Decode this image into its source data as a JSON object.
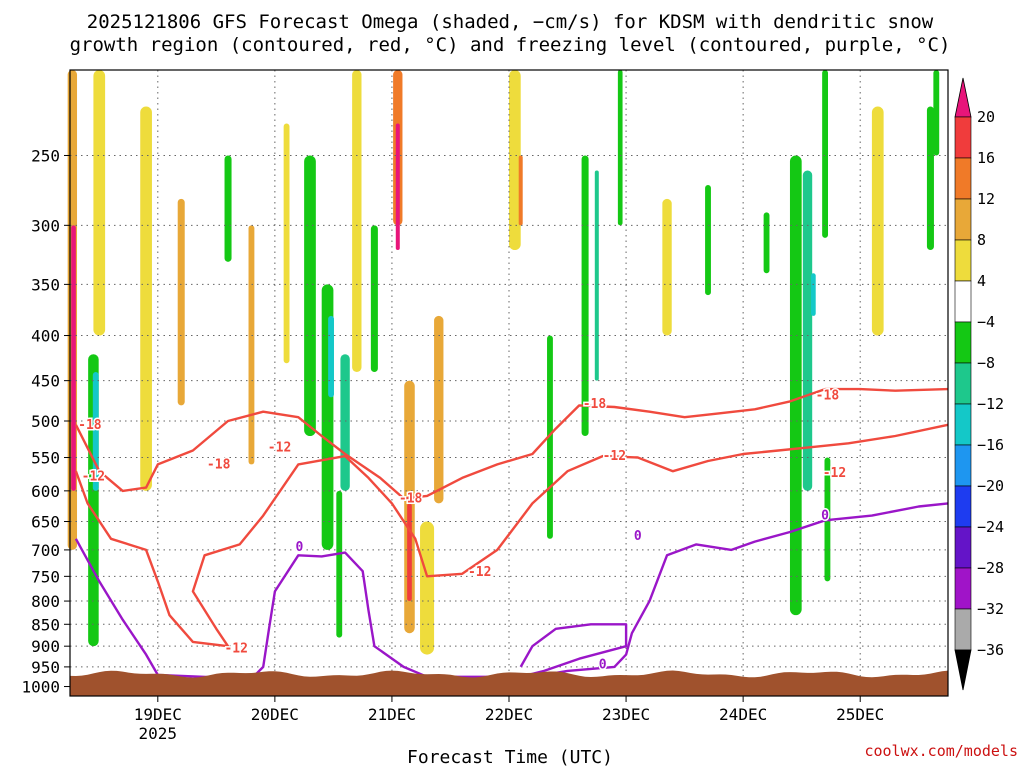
{
  "title": {
    "line1": "2025121806 GFS Forecast Omega (shaded, −cm/s) for KDSM with dendritic snow",
    "line2": "growth region (contoured, red, °C) and freezing level (contoured, purple, °C)"
  },
  "xlabel": "Forecast Time (UTC)",
  "credit": "coolwx.com/models",
  "colors": {
    "dgz_contour": "#f04a3e",
    "freezing_contour": "#9a16c8",
    "terrain": "#a0522d",
    "grid": "#666666"
  },
  "chart_data": {
    "type": "heatmap",
    "x_ticks": [
      {
        "day": 19,
        "label": "19DEC",
        "year": "2025"
      },
      {
        "day": 20,
        "label": "20DEC"
      },
      {
        "day": 21,
        "label": "21DEC"
      },
      {
        "day": 22,
        "label": "22DEC"
      },
      {
        "day": 23,
        "label": "23DEC"
      },
      {
        "day": 24,
        "label": "24DEC"
      },
      {
        "day": 25,
        "label": "25DEC"
      }
    ],
    "xlim": [
      18.25,
      25.75
    ],
    "y_ticks": [
      250,
      300,
      350,
      400,
      450,
      500,
      550,
      600,
      650,
      700,
      750,
      800,
      850,
      900,
      950,
      1000
    ],
    "ylim": [
      200,
      1025
    ],
    "y_scale": "log (pressure, inverted)",
    "grid": true,
    "colorbar": {
      "labels": [
        "20",
        "16",
        "12",
        "8",
        "4",
        "−4",
        "−8",
        "−12",
        "−16",
        "−20",
        "−24",
        "−28",
        "−32",
        "−36"
      ],
      "bins": [
        {
          "from": 20,
          "color": "#e8157a"
        },
        {
          "from": 16,
          "to": 20,
          "color": "#f03c3c"
        },
        {
          "from": 12,
          "to": 16,
          "color": "#f07a28"
        },
        {
          "from": 8,
          "to": 12,
          "color": "#e8a838"
        },
        {
          "from": 4,
          "to": 8,
          "color": "#eedc3c"
        },
        {
          "from": -4,
          "to": 4,
          "color": "#ffffff"
        },
        {
          "from": -8,
          "to": -4,
          "color": "#14c814"
        },
        {
          "from": -12,
          "to": -8,
          "color": "#1ec88c"
        },
        {
          "from": -16,
          "to": -12,
          "color": "#14c8c8"
        },
        {
          "from": -20,
          "to": -16,
          "color": "#1e96f0"
        },
        {
          "from": -24,
          "to": -20,
          "color": "#1e3cf0"
        },
        {
          "from": -28,
          "to": -24,
          "color": "#6414c8"
        },
        {
          "from": -32,
          "to": -28,
          "color": "#a014c8"
        },
        {
          "from": -36,
          "to": -32,
          "color": "#aaaaaa"
        },
        {
          "to": -36,
          "color": "#000000"
        }
      ]
    },
    "omega_regions": [
      {
        "x": 18.27,
        "p0": 200,
        "p1": 700,
        "w": 0.08,
        "v": 8
      },
      {
        "x": 18.28,
        "p0": 300,
        "p1": 600,
        "w": 0.04,
        "v": 20
      },
      {
        "x": 18.5,
        "p0": 200,
        "p1": 400,
        "w": 0.1,
        "v": 4
      },
      {
        "x": 18.45,
        "p0": 420,
        "p1": 900,
        "w": 0.09,
        "v": -8
      },
      {
        "x": 18.47,
        "p0": 440,
        "p1": 600,
        "w": 0.05,
        "v": -16
      },
      {
        "x": 18.9,
        "p0": 220,
        "p1": 600,
        "w": 0.1,
        "v": 4
      },
      {
        "x": 19.2,
        "p0": 280,
        "p1": 480,
        "w": 0.06,
        "v": 8
      },
      {
        "x": 19.6,
        "p0": 250,
        "p1": 330,
        "w": 0.06,
        "v": -8
      },
      {
        "x": 19.8,
        "p0": 300,
        "p1": 560,
        "w": 0.05,
        "v": 8
      },
      {
        "x": 20.1,
        "p0": 230,
        "p1": 430,
        "w": 0.05,
        "v": 4
      },
      {
        "x": 20.3,
        "p0": 250,
        "p1": 520,
        "w": 0.1,
        "v": -8
      },
      {
        "x": 20.45,
        "p0": 350,
        "p1": 700,
        "w": 0.1,
        "v": -8
      },
      {
        "x": 20.48,
        "p0": 380,
        "p1": 470,
        "w": 0.05,
        "v": -16
      },
      {
        "x": 20.55,
        "p0": 600,
        "p1": 880,
        "w": 0.05,
        "v": -8
      },
      {
        "x": 20.7,
        "p0": 200,
        "p1": 440,
        "w": 0.08,
        "v": 4
      },
      {
        "x": 20.6,
        "p0": 420,
        "p1": 600,
        "w": 0.08,
        "v": -12
      },
      {
        "x": 20.85,
        "p0": 300,
        "p1": 440,
        "w": 0.06,
        "v": -8
      },
      {
        "x": 21.05,
        "p0": 200,
        "p1": 300,
        "w": 0.08,
        "v": 12
      },
      {
        "x": 21.05,
        "p0": 230,
        "p1": 320,
        "w": 0.03,
        "v": 20
      },
      {
        "x": 21.15,
        "p0": 450,
        "p1": 870,
        "w": 0.09,
        "v": 8
      },
      {
        "x": 21.15,
        "p0": 620,
        "p1": 800,
        "w": 0.04,
        "v": 16
      },
      {
        "x": 21.4,
        "p0": 380,
        "p1": 620,
        "w": 0.08,
        "v": 8
      },
      {
        "x": 21.3,
        "p0": 650,
        "p1": 920,
        "w": 0.12,
        "v": 4
      },
      {
        "x": 22.05,
        "p0": 200,
        "p1": 320,
        "w": 0.1,
        "v": 4
      },
      {
        "x": 22.1,
        "p0": 250,
        "p1": 300,
        "w": 0.03,
        "v": 12
      },
      {
        "x": 22.35,
        "p0": 400,
        "p1": 680,
        "w": 0.05,
        "v": -8
      },
      {
        "x": 22.65,
        "p0": 250,
        "p1": 520,
        "w": 0.06,
        "v": -8
      },
      {
        "x": 22.75,
        "p0": 260,
        "p1": 450,
        "w": 0.03,
        "v": -12
      },
      {
        "x": 22.95,
        "p0": 200,
        "p1": 300,
        "w": 0.04,
        "v": -8
      },
      {
        "x": 23.35,
        "p0": 280,
        "p1": 400,
        "w": 0.08,
        "v": 4
      },
      {
        "x": 23.7,
        "p0": 270,
        "p1": 360,
        "w": 0.05,
        "v": -8
      },
      {
        "x": 24.2,
        "p0": 290,
        "p1": 340,
        "w": 0.05,
        "v": -8
      },
      {
        "x": 24.45,
        "p0": 250,
        "p1": 830,
        "w": 0.1,
        "v": -8
      },
      {
        "x": 24.55,
        "p0": 260,
        "p1": 600,
        "w": 0.08,
        "v": -12
      },
      {
        "x": 24.6,
        "p0": 340,
        "p1": 380,
        "w": 0.04,
        "v": -16
      },
      {
        "x": 24.7,
        "p0": 200,
        "p1": 310,
        "w": 0.05,
        "v": -8
      },
      {
        "x": 24.72,
        "p0": 550,
        "p1": 760,
        "w": 0.05,
        "v": -8
      },
      {
        "x": 25.15,
        "p0": 220,
        "p1": 400,
        "w": 0.1,
        "v": 4
      },
      {
        "x": 25.6,
        "p0": 220,
        "p1": 320,
        "w": 0.06,
        "v": -8
      },
      {
        "x": 25.65,
        "p0": 200,
        "p1": 250,
        "w": 0.05,
        "v": -8
      }
    ],
    "contours": {
      "dgz_minus_18": [
        [
          18.3,
          505
        ],
        [
          18.5,
          570
        ],
        [
          18.7,
          600
        ],
        [
          18.9,
          595
        ],
        [
          19.0,
          560
        ],
        [
          19.3,
          540
        ],
        [
          19.6,
          500
        ],
        [
          19.9,
          488
        ],
        [
          20.2,
          495
        ],
        [
          20.4,
          520
        ],
        [
          20.6,
          545
        ],
        [
          20.9,
          580
        ],
        [
          21.1,
          612
        ],
        [
          21.3,
          608
        ],
        [
          21.6,
          580
        ],
        [
          21.9,
          560
        ],
        [
          22.2,
          545
        ],
        [
          22.4,
          510
        ],
        [
          22.6,
          480
        ],
        [
          22.9,
          482
        ],
        [
          23.2,
          488
        ],
        [
          23.5,
          495
        ],
        [
          23.8,
          490
        ],
        [
          24.1,
          485
        ],
        [
          24.4,
          475
        ],
        [
          24.7,
          460
        ],
        [
          25.0,
          460
        ],
        [
          25.3,
          462
        ],
        [
          25.75,
          460
        ]
      ],
      "dgz_minus_12": [
        [
          18.3,
          570
        ],
        [
          18.4,
          620
        ],
        [
          18.6,
          680
        ],
        [
          18.9,
          700
        ],
        [
          19.0,
          760
        ],
        [
          19.1,
          830
        ],
        [
          19.3,
          890
        ],
        [
          19.6,
          900
        ],
        [
          19.5,
          860
        ],
        [
          19.3,
          780
        ],
        [
          19.4,
          710
        ],
        [
          19.7,
          690
        ],
        [
          19.9,
          640
        ],
        [
          20.2,
          560
        ],
        [
          20.6,
          548
        ],
        [
          20.8,
          580
        ],
        [
          21.0,
          620
        ],
        [
          21.2,
          680
        ],
        [
          21.3,
          750
        ],
        [
          21.6,
          745
        ],
        [
          21.9,
          700
        ],
        [
          22.2,
          620
        ],
        [
          22.5,
          570
        ],
        [
          22.8,
          548
        ],
        [
          23.1,
          550
        ],
        [
          23.4,
          570
        ],
        [
          23.7,
          555
        ],
        [
          24.0,
          545
        ],
        [
          24.3,
          540
        ],
        [
          24.6,
          535
        ],
        [
          24.9,
          530
        ],
        [
          25.3,
          520
        ],
        [
          25.75,
          505
        ]
      ],
      "freezing_0": [
        [
          18.3,
          680
        ],
        [
          18.5,
          760
        ],
        [
          18.7,
          840
        ],
        [
          18.9,
          920
        ],
        [
          19.0,
          970
        ],
        [
          19.8,
          980
        ],
        [
          19.9,
          950
        ],
        [
          19.95,
          860
        ],
        [
          20.0,
          780
        ],
        [
          20.2,
          710
        ],
        [
          20.4,
          712
        ],
        [
          20.6,
          705
        ],
        [
          20.75,
          740
        ],
        [
          20.8,
          820
        ],
        [
          20.85,
          900
        ],
        [
          21.1,
          950
        ],
        [
          21.3,
          975
        ],
        [
          22.2,
          975
        ],
        [
          22.5,
          960
        ],
        [
          22.9,
          950
        ],
        [
          23.0,
          920
        ],
        [
          23.05,
          870
        ],
        [
          23.2,
          800
        ],
        [
          23.35,
          710
        ],
        [
          23.6,
          690
        ],
        [
          23.9,
          700
        ],
        [
          24.1,
          685
        ],
        [
          24.4,
          668
        ],
        [
          24.7,
          648
        ],
        [
          25.1,
          640
        ],
        [
          25.5,
          625
        ],
        [
          25.75,
          620
        ]
      ],
      "freezing_0b": [
        [
          22.1,
          950
        ],
        [
          22.2,
          900
        ],
        [
          22.4,
          860
        ],
        [
          22.7,
          850
        ],
        [
          23.0,
          850
        ],
        [
          23.0,
          900
        ],
        [
          22.6,
          930
        ],
        [
          22.3,
          960
        ],
        [
          22.1,
          975
        ]
      ]
    },
    "contour_labels": [
      {
        "text": "-18",
        "x": 18.42,
        "p": 505,
        "color": "red"
      },
      {
        "text": "-12",
        "x": 18.45,
        "p": 578,
        "color": "red"
      },
      {
        "text": "-18",
        "x": 19.52,
        "p": 560,
        "color": "red"
      },
      {
        "text": "-12",
        "x": 20.04,
        "p": 536,
        "color": "red"
      },
      {
        "text": "-18",
        "x": 21.16,
        "p": 612,
        "color": "red"
      },
      {
        "text": "-12",
        "x": 21.75,
        "p": 742,
        "color": "red"
      },
      {
        "text": "-12",
        "x": 19.67,
        "p": 905,
        "color": "red"
      },
      {
        "text": "-18",
        "x": 22.73,
        "p": 478,
        "color": "red"
      },
      {
        "text": "-12",
        "x": 22.9,
        "p": 548,
        "color": "red"
      },
      {
        "text": "-18",
        "x": 24.72,
        "p": 468,
        "color": "red"
      },
      {
        "text": "-12",
        "x": 24.78,
        "p": 573,
        "color": "red"
      },
      {
        "text": "0",
        "x": 20.21,
        "p": 695,
        "color": "purple"
      },
      {
        "text": "0",
        "x": 23.1,
        "p": 675,
        "color": "purple"
      },
      {
        "text": "0",
        "x": 24.7,
        "p": 640,
        "color": "purple"
      },
      {
        "text": "0",
        "x": 22.8,
        "p": 944,
        "color": "purple"
      }
    ]
  }
}
